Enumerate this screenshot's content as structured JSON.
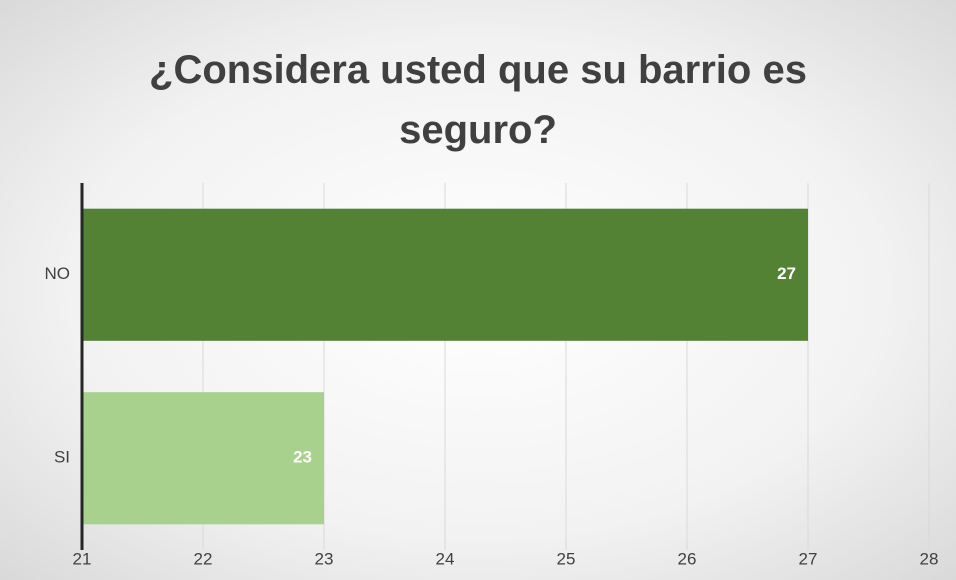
{
  "chart_data": {
    "type": "barh",
    "title": "¿Considera usted que su barrio es seguro?",
    "categories": [
      "NO",
      "SI"
    ],
    "values": [
      27,
      23
    ],
    "colors": [
      "#548235",
      "#a9d18e"
    ],
    "xlim": [
      21,
      28
    ],
    "xticks": [
      21,
      22,
      23,
      24,
      25,
      26,
      27,
      28
    ],
    "grid": true
  }
}
